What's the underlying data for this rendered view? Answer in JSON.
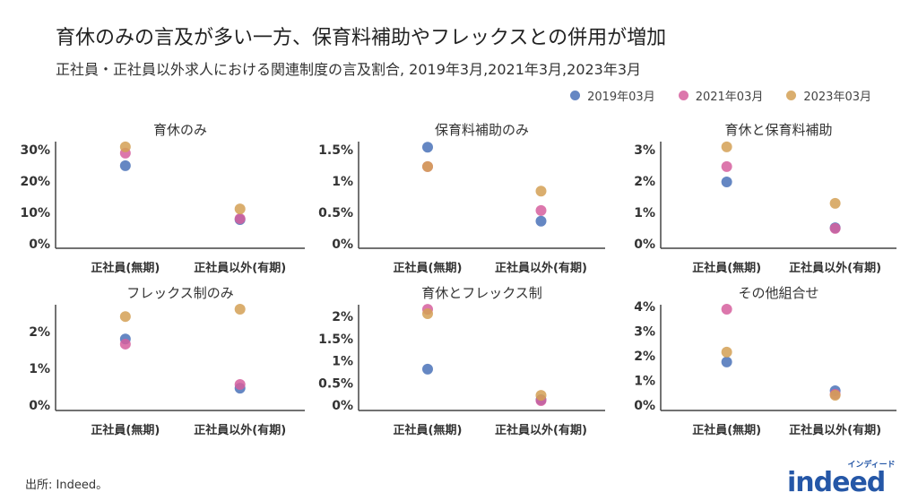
{
  "title": "育休のみの言及が多い一方、保育料補助やフレックスとの併用が増加",
  "subtitle": "正社員・正社員以外求人における関連制度の言及割合, 2019年3月,2021年3月,2023年3月",
  "source": "出所: Indeed。",
  "logo": {
    "text": "indeed",
    "kana": "インディード",
    "color": "#2557a7"
  },
  "colors": {
    "2019年03月": "#4a72b8",
    "2021年03月": "#d65f9e",
    "2023年03月": "#d4a055"
  },
  "chart_data": [
    {
      "type": "scatter",
      "title": "育休のみ",
      "categories": [
        "正社員(無期)",
        "正社員以外(有期)"
      ],
      "yticks": [
        0,
        10,
        20,
        30
      ],
      "ytick_labels": [
        "0%",
        "10%",
        "20%",
        "30%"
      ],
      "ylim": [
        0,
        32
      ],
      "series": [
        {
          "name": "2019年03月",
          "values": [
            24.9,
            7.7
          ]
        },
        {
          "name": "2021年03月",
          "values": [
            28.9,
            8.0
          ]
        },
        {
          "name": "2023年03月",
          "values": [
            30.9,
            11.1
          ]
        }
      ]
    },
    {
      "type": "scatter",
      "title": "保育料補助のみ",
      "categories": [
        "正社員(無期)",
        "正社員以外(有期)"
      ],
      "yticks": [
        0,
        0.5,
        1,
        1.5
      ],
      "ytick_labels": [
        "0%",
        "0.5%",
        "1%",
        "1.5%"
      ],
      "ylim": [
        0,
        1.6
      ],
      "series": [
        {
          "name": "2019年03月",
          "values": [
            1.54,
            0.36
          ]
        },
        {
          "name": "2021年03月",
          "values": [
            1.23,
            0.53
          ]
        },
        {
          "name": "2023年03月",
          "values": [
            1.23,
            0.84
          ]
        }
      ]
    },
    {
      "type": "scatter",
      "title": "育休と保育料補助",
      "categories": [
        "正社員(無期)",
        "正社員以外(有期)"
      ],
      "yticks": [
        0,
        1,
        2,
        3
      ],
      "ytick_labels": [
        "0%",
        "1%",
        "2%",
        "3%"
      ],
      "ylim": [
        0,
        3.2
      ],
      "series": [
        {
          "name": "2019年03月",
          "values": [
            1.97,
            0.51
          ]
        },
        {
          "name": "2021年03月",
          "values": [
            2.46,
            0.49
          ]
        },
        {
          "name": "2023年03月",
          "values": [
            3.09,
            1.29
          ]
        }
      ]
    },
    {
      "type": "scatter",
      "title": "フレックス制のみ",
      "categories": [
        "正社員(無期)",
        "正社員以外(有期)"
      ],
      "yticks": [
        0,
        1,
        2
      ],
      "ytick_labels": [
        "0%",
        "1%",
        "2%"
      ],
      "ylim": [
        0,
        2.7
      ],
      "series": [
        {
          "name": "2019年03月",
          "values": [
            1.8,
            0.46
          ]
        },
        {
          "name": "2021年03月",
          "values": [
            1.66,
            0.56
          ]
        },
        {
          "name": "2023年03月",
          "values": [
            2.41,
            2.61
          ]
        }
      ]
    },
    {
      "type": "scatter",
      "title": "育休とフレックス制",
      "categories": [
        "正社員(無期)",
        "正社員以外(有期)"
      ],
      "yticks": [
        0,
        0.5,
        1,
        1.5,
        2
      ],
      "ytick_labels": [
        "0%",
        "0.5%",
        "1%",
        "1.5%",
        "2%"
      ],
      "ylim": [
        0,
        2.25
      ],
      "series": [
        {
          "name": "2019年03月",
          "values": [
            0.81,
            0.12
          ]
        },
        {
          "name": "2021年03月",
          "values": [
            2.16,
            0.1
          ]
        },
        {
          "name": "2023年03月",
          "values": [
            2.06,
            0.22
          ]
        }
      ]
    },
    {
      "type": "scatter",
      "title": "その他組合せ",
      "categories": [
        "正社員(無期)",
        "正社員以外(有期)"
      ],
      "yticks": [
        0,
        1,
        2,
        3,
        4
      ],
      "ytick_labels": [
        "0%",
        "1%",
        "2%",
        "3%",
        "4%"
      ],
      "ylim": [
        0,
        4.1
      ],
      "series": [
        {
          "name": "2019年03月",
          "values": [
            1.75,
            0.58
          ]
        },
        {
          "name": "2021年03月",
          "values": [
            3.89,
            0.44
          ]
        },
        {
          "name": "2023年03月",
          "values": [
            2.15,
            0.4
          ]
        }
      ]
    }
  ]
}
